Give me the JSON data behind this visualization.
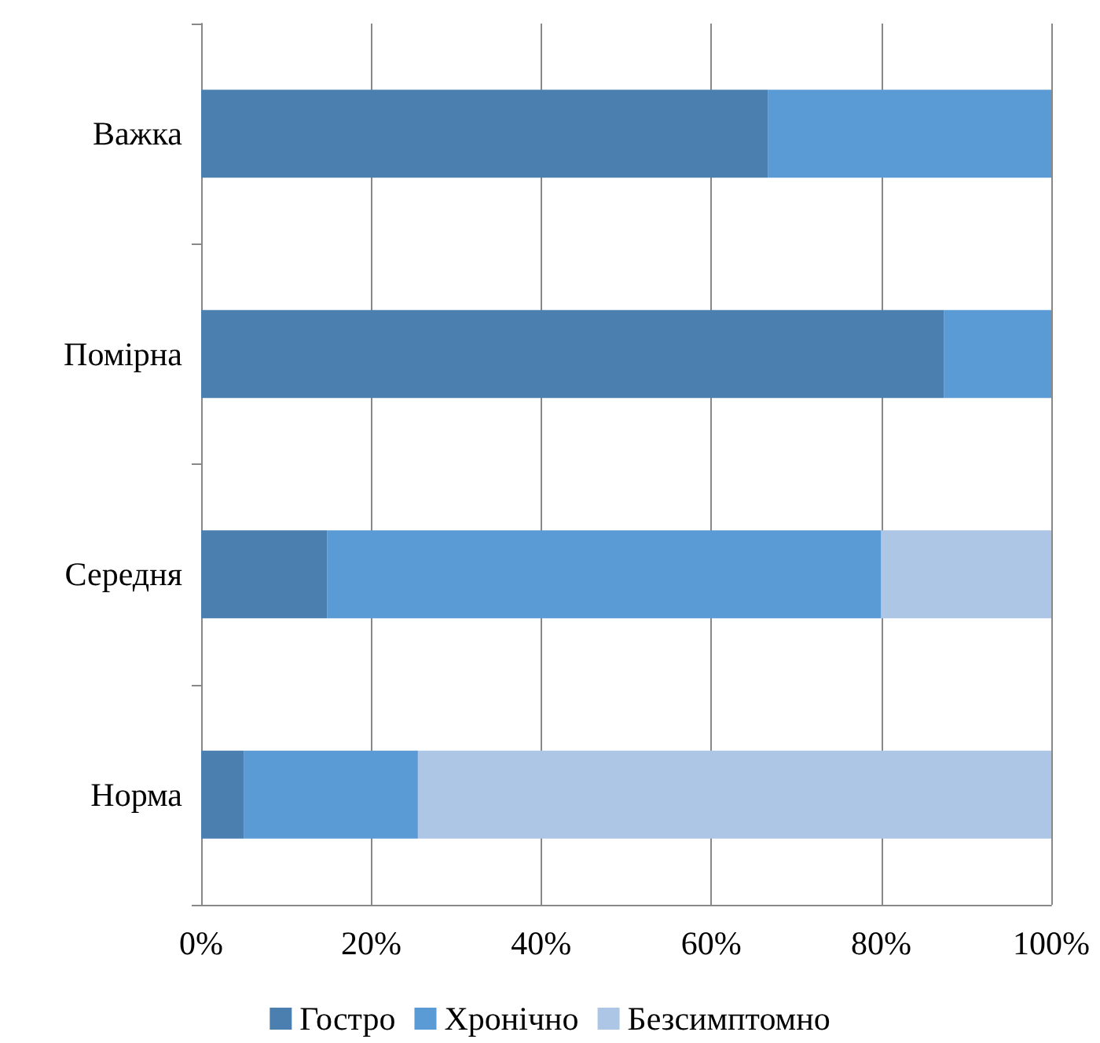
{
  "chart_data": {
    "type": "bar",
    "orientation": "horizontal",
    "stacked": true,
    "categories": [
      "Важка",
      "Помірна",
      "Середня",
      "Норма"
    ],
    "series": [
      {
        "name": "Гостро",
        "color": "#4a7fb0",
        "values": [
          66.7,
          87.4,
          14.8,
          5.0
        ]
      },
      {
        "name": "Хронічно",
        "color": "#5b9bd5",
        "values": [
          33.3,
          12.6,
          65.2,
          20.5
        ]
      },
      {
        "name": "Безсимптомно",
        "color": "#adc6e5",
        "values": [
          null,
          null,
          20.0,
          74.5
        ]
      }
    ],
    "xlim": [
      0,
      100
    ],
    "xticks": [
      {
        "value": 0,
        "label": "0%"
      },
      {
        "value": 20,
        "label": "20%"
      },
      {
        "value": 40,
        "label": "40%"
      },
      {
        "value": 60,
        "label": "60%"
      },
      {
        "value": 80,
        "label": "80%"
      },
      {
        "value": 100,
        "label": "100%"
      }
    ],
    "grid": "x",
    "legend": "bottom"
  }
}
